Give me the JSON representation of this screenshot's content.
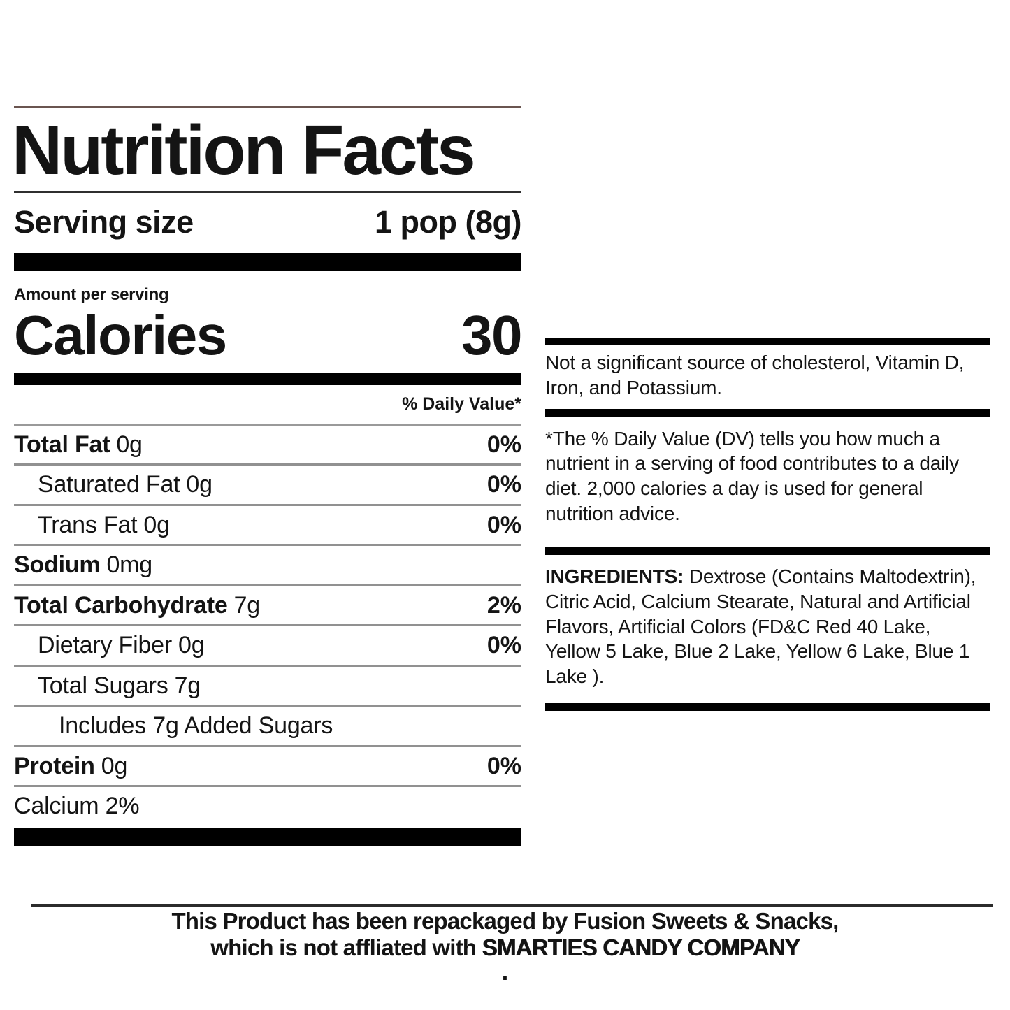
{
  "label": {
    "title": "Nutrition Facts",
    "serving_size_label": "Serving size",
    "serving_size_value": "1 pop (8g)",
    "amount_per_serving": "Amount per serving",
    "calories_label": "Calories",
    "calories_value": "30",
    "daily_value_header": "% Daily Value*",
    "rows": [
      {
        "name": "Total Fat",
        "amount": "0g",
        "dv": "0%",
        "bold": true,
        "indent": 0
      },
      {
        "name": "Saturated Fat",
        "amount": "0g",
        "dv": "0%",
        "bold": false,
        "indent": 1
      },
      {
        "name": "Trans Fat",
        "amount": "0g",
        "dv": "0%",
        "bold": false,
        "indent": 1
      },
      {
        "name": "Sodium",
        "amount": "0mg",
        "dv": "",
        "bold": true,
        "indent": 0
      },
      {
        "name": "Total Carbohydrate",
        "amount": "7g",
        "dv": "2%",
        "bold": true,
        "indent": 0
      },
      {
        "name": "Dietary Fiber",
        "amount": "0g",
        "dv": "0%",
        "bold": false,
        "indent": 1
      },
      {
        "name": "Total Sugars",
        "amount": "7g",
        "dv": "",
        "bold": false,
        "indent": 1
      },
      {
        "name": "Includes 7g Added Sugars",
        "amount": "",
        "dv": "",
        "bold": false,
        "indent": 2
      },
      {
        "name": "Protein",
        "amount": "0g",
        "dv": "0%",
        "bold": true,
        "indent": 0
      },
      {
        "name": "Calcium 2%",
        "amount": "",
        "dv": "",
        "bold": false,
        "indent": 0
      }
    ]
  },
  "side": {
    "not_significant": "Not a significant source of cholesterol, Vitamin D, Iron, and Potassium.",
    "dv_footnote": "*The % Daily Value (DV) tells you how much a nutrient in a serving of food contributes to a daily diet. 2,000 calories a day is used for general nutrition advice.",
    "ingredients_label": "INGREDIENTS:",
    "ingredients_text": " Dextrose (Contains Maltodextrin), Citric Acid, Calcium Stearate, Natural and Artificial Flavors, Artificial Colors (FD&C Red 40 Lake, Yellow 5 Lake, Blue 2 Lake, Yellow 6 Lake, Blue 1 Lake )."
  },
  "footer": {
    "line1": "This Product has been repackaged by Fusion Sweets & Snacks,",
    "line2_prefix": "which is not affliated with ",
    "line2_company": "SMARTIES CANDY COMPANY",
    "period": "."
  },
  "colors": {
    "top_rule": "#6a5550",
    "panel_bar": "#000000",
    "row_divider": "#919191",
    "text": "#141414"
  }
}
